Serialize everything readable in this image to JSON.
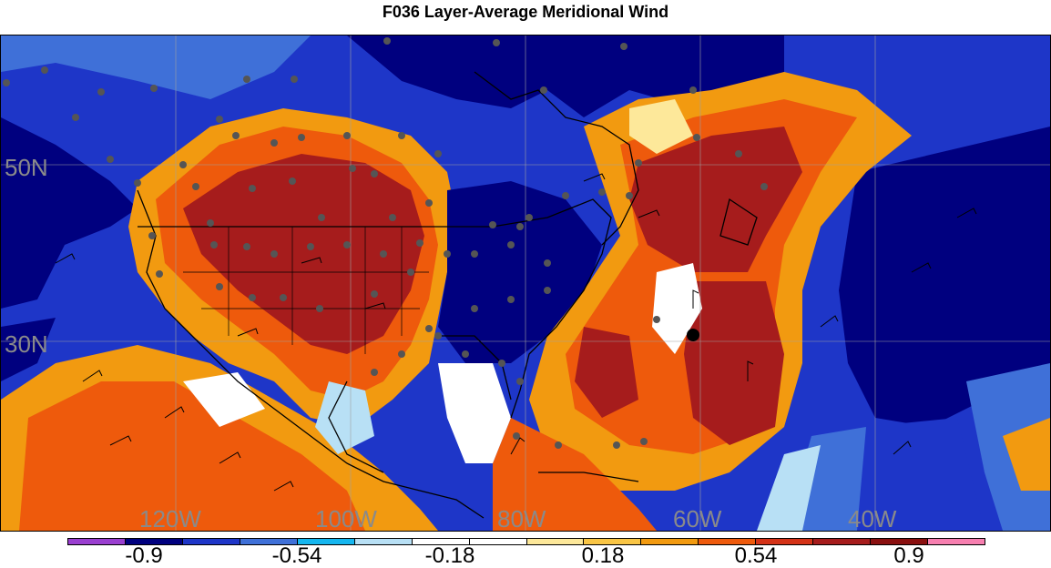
{
  "title": "F036 Layer-Average Meridional Wind",
  "map": {
    "lat_labels": [
      "50N",
      "30N"
    ],
    "lon_labels": [
      "120W",
      "100W",
      "80W",
      "60W",
      "40W"
    ]
  },
  "colorbar": {
    "colors": [
      "#9a3fd0",
      "#00007f",
      "#1e36c8",
      "#3f70d8",
      "#15b6ef",
      "#b8e0f5",
      "#ffffff",
      "#ffffff",
      "#fde89a",
      "#f9c545",
      "#f29a10",
      "#ee5a0c",
      "#d43217",
      "#a61c1c",
      "#8a1010",
      "#f77fb0"
    ],
    "labels": [
      "-0.9",
      "-0.54",
      "-0.18",
      "0.18",
      "0.54",
      "0.9"
    ]
  },
  "legend_colors": {
    "deep_blue": "#00007f",
    "blue": "#1e36c8",
    "mid_blue": "#3f70d8",
    "cyan": "#15b6ef",
    "light_cyan": "#b8e0f5",
    "yellow": "#fde89a",
    "orange": "#f29a10",
    "red_orange": "#ee5a0c",
    "dark_red": "#a61c1c"
  },
  "icons": {
    "station_dot": "station-dot-icon",
    "wind_barb": "wind-barb-icon"
  }
}
